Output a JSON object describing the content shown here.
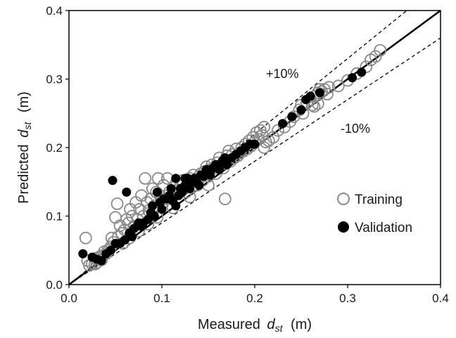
{
  "chart_data": {
    "type": "scatter",
    "title": "",
    "xlabel": "Measured",
    "ylabel": "Predicted",
    "axis_symbol": "d",
    "axis_subscript": "st",
    "axis_unit": "(m)",
    "xlim": [
      0.0,
      0.4
    ],
    "ylim": [
      0.0,
      0.4
    ],
    "xticks": [
      "0.0",
      "0.1",
      "0.2",
      "0.3",
      "0.4"
    ],
    "yticks": [
      "0.0",
      "0.1",
      "0.2",
      "0.3",
      "0.4"
    ],
    "grid": false,
    "legend_position": "right-middle",
    "reference_lines": [
      {
        "label": "",
        "style": "solid",
        "slope": 1.0
      },
      {
        "label": "+10%",
        "style": "dashed",
        "slope": 1.1
      },
      {
        "label": "-10%",
        "style": "dashed",
        "slope": 0.9
      }
    ],
    "series": [
      {
        "name": "Training",
        "marker": "open-circle",
        "color": "#8a8a8a",
        "points": [
          [
            0.018,
            0.068
          ],
          [
            0.02,
            0.035
          ],
          [
            0.022,
            0.028
          ],
          [
            0.025,
            0.03
          ],
          [
            0.028,
            0.038
          ],
          [
            0.03,
            0.032
          ],
          [
            0.032,
            0.04
          ],
          [
            0.035,
            0.042
          ],
          [
            0.038,
            0.048
          ],
          [
            0.04,
            0.045
          ],
          [
            0.042,
            0.05
          ],
          [
            0.045,
            0.055
          ],
          [
            0.046,
            0.068
          ],
          [
            0.048,
            0.062
          ],
          [
            0.05,
            0.098
          ],
          [
            0.052,
            0.118
          ],
          [
            0.053,
            0.07
          ],
          [
            0.055,
            0.086
          ],
          [
            0.057,
            0.075
          ],
          [
            0.06,
            0.08
          ],
          [
            0.062,
            0.095
          ],
          [
            0.064,
            0.09
          ],
          [
            0.066,
            0.11
          ],
          [
            0.068,
            0.1
          ],
          [
            0.07,
            0.085
          ],
          [
            0.072,
            0.12
          ],
          [
            0.074,
            0.095
          ],
          [
            0.076,
            0.11
          ],
          [
            0.078,
            0.13
          ],
          [
            0.08,
            0.1
          ],
          [
            0.082,
            0.155
          ],
          [
            0.084,
            0.12
          ],
          [
            0.086,
            0.108
          ],
          [
            0.088,
            0.125
          ],
          [
            0.09,
            0.14
          ],
          [
            0.092,
            0.115
          ],
          [
            0.094,
            0.135
          ],
          [
            0.096,
            0.155
          ],
          [
            0.098,
            0.13
          ],
          [
            0.1,
            0.118
          ],
          [
            0.102,
            0.145
          ],
          [
            0.104,
            0.125
          ],
          [
            0.106,
            0.155
          ],
          [
            0.108,
            0.135
          ],
          [
            0.11,
            0.128
          ],
          [
            0.112,
            0.142
          ],
          [
            0.114,
            0.132
          ],
          [
            0.116,
            0.15
          ],
          [
            0.118,
            0.138
          ],
          [
            0.12,
            0.145
          ],
          [
            0.122,
            0.152
          ],
          [
            0.124,
            0.14
          ],
          [
            0.126,
            0.135
          ],
          [
            0.128,
            0.148
          ],
          [
            0.13,
            0.155
          ],
          [
            0.132,
            0.142
          ],
          [
            0.134,
            0.16
          ],
          [
            0.136,
            0.15
          ],
          [
            0.138,
            0.145
          ],
          [
            0.14,
            0.158
          ],
          [
            0.142,
            0.162
          ],
          [
            0.144,
            0.152
          ],
          [
            0.146,
            0.165
          ],
          [
            0.148,
            0.172
          ],
          [
            0.15,
            0.158
          ],
          [
            0.152,
            0.168
          ],
          [
            0.154,
            0.175
          ],
          [
            0.156,
            0.17
          ],
          [
            0.158,
            0.162
          ],
          [
            0.16,
            0.178
          ],
          [
            0.162,
            0.185
          ],
          [
            0.164,
            0.175
          ],
          [
            0.166,
            0.17
          ],
          [
            0.168,
            0.182
          ],
          [
            0.17,
            0.188
          ],
          [
            0.172,
            0.195
          ],
          [
            0.174,
            0.18
          ],
          [
            0.176,
            0.19
          ],
          [
            0.178,
            0.185
          ],
          [
            0.18,
            0.198
          ],
          [
            0.182,
            0.188
          ],
          [
            0.184,
            0.192
          ],
          [
            0.186,
            0.2
          ],
          [
            0.188,
            0.195
          ],
          [
            0.19,
            0.205
          ],
          [
            0.192,
            0.198
          ],
          [
            0.194,
            0.21
          ],
          [
            0.196,
            0.202
          ],
          [
            0.198,
            0.215
          ],
          [
            0.2,
            0.208
          ],
          [
            0.202,
            0.222
          ],
          [
            0.204,
            0.212
          ],
          [
            0.206,
            0.225
          ],
          [
            0.208,
            0.218
          ],
          [
            0.21,
            0.23
          ],
          [
            0.212,
            0.208
          ],
          [
            0.168,
            0.125
          ],
          [
            0.15,
            0.145
          ],
          [
            0.13,
            0.128
          ],
          [
            0.112,
            0.112
          ],
          [
            0.095,
            0.098
          ],
          [
            0.085,
            0.088
          ],
          [
            0.075,
            0.078
          ],
          [
            0.065,
            0.068
          ],
          [
            0.058,
            0.06
          ],
          [
            0.035,
            0.036
          ],
          [
            0.028,
            0.03
          ],
          [
            0.21,
            0.2
          ],
          [
            0.215,
            0.21
          ],
          [
            0.22,
            0.215
          ],
          [
            0.225,
            0.225
          ],
          [
            0.232,
            0.23
          ],
          [
            0.238,
            0.238
          ],
          [
            0.242,
            0.245
          ],
          [
            0.248,
            0.255
          ],
          [
            0.25,
            0.262
          ],
          [
            0.252,
            0.25
          ],
          [
            0.256,
            0.265
          ],
          [
            0.26,
            0.27
          ],
          [
            0.262,
            0.262
          ],
          [
            0.265,
            0.275
          ],
          [
            0.268,
            0.28
          ],
          [
            0.27,
            0.285
          ],
          [
            0.272,
            0.282
          ],
          [
            0.275,
            0.285
          ],
          [
            0.278,
            0.278
          ],
          [
            0.28,
            0.288
          ],
          [
            0.29,
            0.29
          ],
          [
            0.3,
            0.298
          ],
          [
            0.31,
            0.308
          ],
          [
            0.32,
            0.318
          ],
          [
            0.325,
            0.328
          ],
          [
            0.33,
            0.333
          ],
          [
            0.335,
            0.342
          ],
          [
            0.264,
            0.26
          ],
          [
            0.268,
            0.264
          ]
        ]
      },
      {
        "name": "Validation",
        "marker": "filled-circle",
        "color": "#000000",
        "points": [
          [
            0.015,
            0.045
          ],
          [
            0.025,
            0.04
          ],
          [
            0.03,
            0.037
          ],
          [
            0.035,
            0.035
          ],
          [
            0.04,
            0.045
          ],
          [
            0.045,
            0.05
          ],
          [
            0.047,
            0.152
          ],
          [
            0.05,
            0.06
          ],
          [
            0.055,
            0.06
          ],
          [
            0.06,
            0.065
          ],
          [
            0.062,
            0.135
          ],
          [
            0.065,
            0.075
          ],
          [
            0.068,
            0.07
          ],
          [
            0.07,
            0.082
          ],
          [
            0.075,
            0.09
          ],
          [
            0.078,
            0.085
          ],
          [
            0.08,
            0.09
          ],
          [
            0.085,
            0.095
          ],
          [
            0.088,
            0.105
          ],
          [
            0.09,
            0.115
          ],
          [
            0.092,
            0.1
          ],
          [
            0.095,
            0.135
          ],
          [
            0.098,
            0.12
          ],
          [
            0.1,
            0.11
          ],
          [
            0.102,
            0.125
          ],
          [
            0.105,
            0.125
          ],
          [
            0.108,
            0.13
          ],
          [
            0.11,
            0.14
          ],
          [
            0.112,
            0.122
          ],
          [
            0.115,
            0.115
          ],
          [
            0.118,
            0.13
          ],
          [
            0.12,
            0.14
          ],
          [
            0.122,
            0.135
          ],
          [
            0.125,
            0.145
          ],
          [
            0.128,
            0.155
          ],
          [
            0.13,
            0.14
          ],
          [
            0.132,
            0.15
          ],
          [
            0.135,
            0.155
          ],
          [
            0.138,
            0.148
          ],
          [
            0.14,
            0.145
          ],
          [
            0.142,
            0.16
          ],
          [
            0.145,
            0.158
          ],
          [
            0.148,
            0.168
          ],
          [
            0.15,
            0.165
          ],
          [
            0.152,
            0.16
          ],
          [
            0.155,
            0.17
          ],
          [
            0.158,
            0.175
          ],
          [
            0.16,
            0.172
          ],
          [
            0.162,
            0.168
          ],
          [
            0.165,
            0.18
          ],
          [
            0.168,
            0.185
          ],
          [
            0.17,
            0.175
          ],
          [
            0.175,
            0.185
          ],
          [
            0.18,
            0.19
          ],
          [
            0.185,
            0.195
          ],
          [
            0.19,
            0.2
          ],
          [
            0.195,
            0.205
          ],
          [
            0.2,
            0.205
          ],
          [
            0.23,
            0.235
          ],
          [
            0.24,
            0.245
          ],
          [
            0.25,
            0.255
          ],
          [
            0.255,
            0.27
          ],
          [
            0.26,
            0.275
          ],
          [
            0.27,
            0.28
          ],
          [
            0.305,
            0.302
          ],
          [
            0.315,
            0.31
          ],
          [
            0.125,
            0.155
          ],
          [
            0.115,
            0.155
          ]
        ]
      }
    ]
  }
}
